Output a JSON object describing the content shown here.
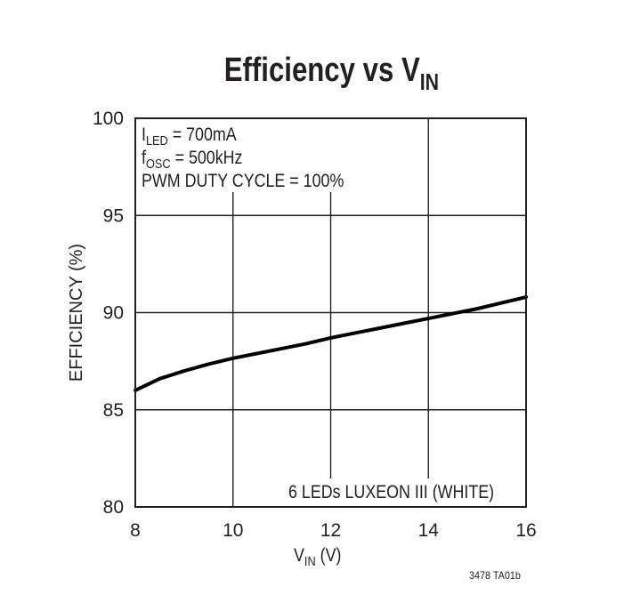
{
  "chart_data": {
    "type": "line",
    "title": {
      "main": "Efficiency vs V",
      "sub": "IN"
    },
    "xlabel": {
      "main": "V",
      "sub": "IN",
      "suffix": " (V)"
    },
    "ylabel": "EFFICIENCY (%)",
    "xlim": [
      8,
      16
    ],
    "ylim": [
      80,
      100
    ],
    "xticks": [
      8,
      10,
      12,
      14,
      16
    ],
    "yticks": [
      80,
      85,
      90,
      95,
      100
    ],
    "grid": true,
    "annotations": [
      {
        "main": "I",
        "sub": "LED",
        "rest": " = 700mA"
      },
      {
        "main": "f",
        "sub": "OSC",
        "rest": " = 500kHz"
      },
      {
        "main": "PWM DUTY CYCLE = 100%",
        "sub": "",
        "rest": ""
      }
    ],
    "series": [
      {
        "name": "6 LEDs LUXEON III (WHITE)",
        "color": "#000000",
        "x": [
          8,
          8.5,
          9,
          9.5,
          10,
          10.5,
          11,
          11.5,
          12,
          12.5,
          13,
          13.5,
          14,
          14.5,
          15,
          15.5,
          16
        ],
        "y": [
          86.0,
          86.6,
          87.0,
          87.35,
          87.65,
          87.9,
          88.15,
          88.4,
          88.7,
          88.95,
          89.2,
          89.45,
          89.7,
          89.95,
          90.2,
          90.5,
          90.8
        ]
      }
    ]
  },
  "footer_code": "3478 TA01b"
}
